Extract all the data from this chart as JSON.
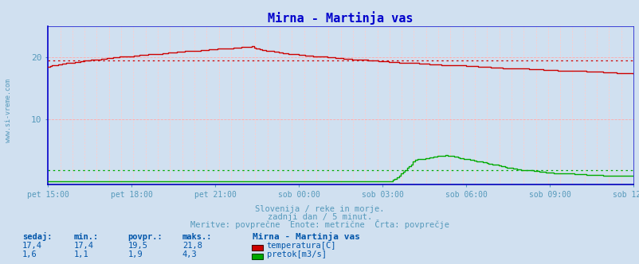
{
  "title": "Mirna - Martinja vas",
  "title_color": "#0000cc",
  "bg_color": "#d0e0f0",
  "plot_bg_color": "#d0e0f0",
  "xlabel_ticks": [
    "pet 15:00",
    "pet 18:00",
    "pet 21:00",
    "sob 00:00",
    "sob 03:00",
    "sob 06:00",
    "sob 09:00",
    "sob 12:00"
  ],
  "yticks": [
    10,
    20
  ],
  "ylim": [
    -0.5,
    25
  ],
  "n_points": 288,
  "grid_major_color": "#ffaaaa",
  "grid_minor_color": "#ffcccc",
  "temp_color": "#cc0000",
  "flow_color": "#00aa00",
  "avg_temp": 19.5,
  "avg_flow": 1.9,
  "watermark": "www.si-vreme.com",
  "watermark_color": "#5599bb",
  "footer_line1": "Slovenija / reke in morje.",
  "footer_line2": "zadnji dan / 5 minut.",
  "footer_line3": "Meritve: povprečne  Enote: metrične  Črta: povprečje",
  "footer_color": "#5599bb",
  "table_header": [
    "sedaj:",
    "min.:",
    "povpr.:",
    "maks.:",
    "Mirna - Martinja vas"
  ],
  "table_row1": [
    "17,4",
    "17,4",
    "19,5",
    "21,8",
    "temperatura[C]"
  ],
  "table_row2": [
    "1,6",
    "1,1",
    "1,9",
    "4,3",
    "pretok[m3/s]"
  ],
  "table_color": "#0055aa",
  "x_label_color": "#5599bb",
  "tick_color": "#5599bb",
  "spine_color": "#0000cc",
  "bottom_spine_color": "#0000bb"
}
